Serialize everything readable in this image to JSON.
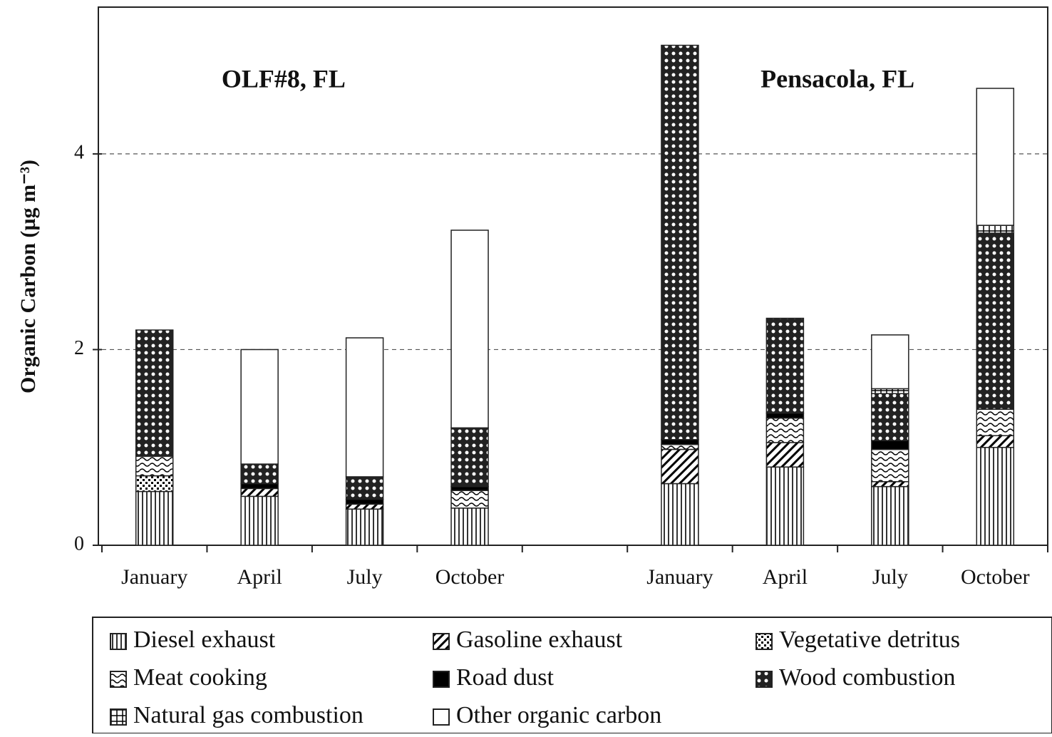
{
  "chart_data": {
    "type": "stacked_bar",
    "y_label": "Organic Carbon (µg m⁻³)",
    "annotations": [
      "OLF#8, FL",
      "Pensacola, FL"
    ],
    "categories": [
      "January",
      "April",
      "July",
      "October",
      null,
      "January",
      "April",
      "July",
      "October"
    ],
    "series": [
      {
        "name": "Diesel exhaust",
        "color": "#000000",
        "pattern": "vertical-lines",
        "values": [
          0.55,
          0.5,
          0.37,
          0.38,
          null,
          0.63,
          0.8,
          0.6,
          1.0
        ]
      },
      {
        "name": "Gasoline exhaust",
        "color": "#000000",
        "pattern": "diagonal-lines",
        "values": [
          0,
          0.08,
          0.05,
          0,
          null,
          0.35,
          0.25,
          0.05,
          0.12
        ]
      },
      {
        "name": "Vegetative detritus",
        "color": "#000000",
        "pattern": "checker-dots",
        "values": [
          0.16,
          0,
          0,
          0,
          null,
          0,
          0,
          0,
          0
        ]
      },
      {
        "name": "Meat cooking",
        "color": "#000000",
        "pattern": "waves",
        "values": [
          0.2,
          0,
          0,
          0.18,
          null,
          0.05,
          0.25,
          0.33,
          0.27
        ]
      },
      {
        "name": "Road dust",
        "color": "#000000",
        "pattern": "solid",
        "values": [
          0,
          0.05,
          0.05,
          0.04,
          null,
          0.05,
          0.05,
          0.09,
          0
        ]
      },
      {
        "name": "Wood combustion",
        "color": "#000000",
        "pattern": "circles",
        "values": [
          1.29,
          0.2,
          0.23,
          0.6,
          null,
          4.03,
          0.97,
          0.48,
          1.8
        ]
      },
      {
        "name": "Natural gas combustion",
        "color": "#000000",
        "pattern": "grid",
        "values": [
          0,
          0,
          0,
          0,
          null,
          0,
          0,
          0.05,
          0.08
        ]
      },
      {
        "name": "Other organic carbon",
        "color": "#000000",
        "pattern": "none",
        "values": [
          0,
          1.17,
          1.42,
          2.02,
          null,
          0,
          0,
          0.55,
          1.4
        ]
      }
    ],
    "ylim": [
      0,
      5.5
    ],
    "yticks": [
      0,
      2,
      4
    ],
    "grid": true
  }
}
